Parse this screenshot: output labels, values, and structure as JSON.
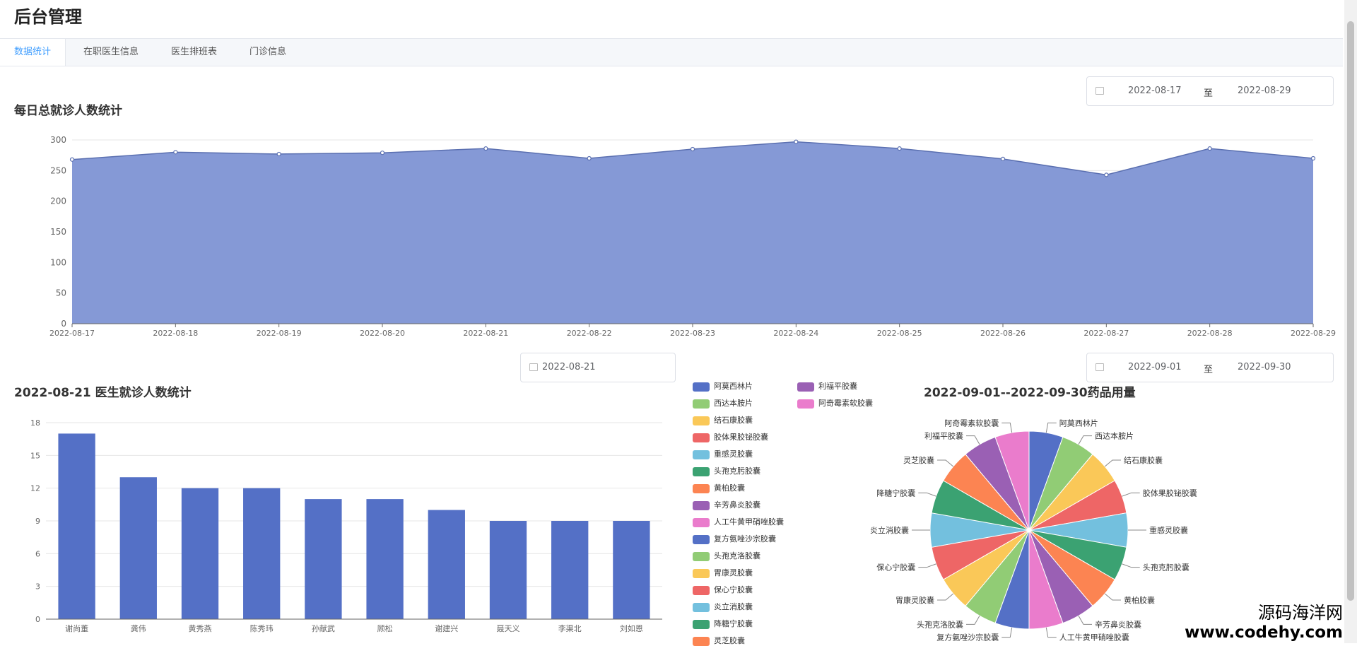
{
  "app": {
    "title": "后台管理"
  },
  "tabs": [
    {
      "label": "数据统计",
      "active": true
    },
    {
      "label": "在职医生信息",
      "active": false
    },
    {
      "label": "医生排班表",
      "active": false
    },
    {
      "label": "门诊信息",
      "active": false
    }
  ],
  "daily_section": {
    "title": "每日总就诊人数统计",
    "range": {
      "start": "2022-08-17",
      "separator": "至",
      "end": "2022-08-29"
    }
  },
  "doctor_section": {
    "title": "2022-08-21 医生就诊人数统计",
    "date": "2022-08-21"
  },
  "drug_section": {
    "title": "2022-09-01--2022-09-30药品用量",
    "range": {
      "start": "2022-09-01",
      "separator": "至",
      "end": "2022-09-30"
    }
  },
  "watermark": {
    "line1": "源码海洋网",
    "line2": "www.codehy.com"
  },
  "colors": {
    "primary": "#5470c6",
    "area_fill": "#8599d6",
    "tab_active": "#409eff"
  },
  "chart_data": [
    {
      "type": "area",
      "x": [
        "2022-08-17",
        "2022-08-18",
        "2022-08-19",
        "2022-08-20",
        "2022-08-21",
        "2022-08-22",
        "2022-08-23",
        "2022-08-24",
        "2022-08-25",
        "2022-08-26",
        "2022-08-27",
        "2022-08-28",
        "2022-08-29"
      ],
      "values": [
        268,
        280,
        277,
        279,
        286,
        270,
        285,
        297,
        286,
        269,
        243,
        286,
        270
      ],
      "ylim": [
        0,
        300
      ],
      "yticks": [
        0,
        50,
        100,
        150,
        200,
        250,
        300
      ],
      "grid": true
    },
    {
      "type": "bar",
      "categories": [
        "谢尚董",
        "龚伟",
        "黄秀燕",
        "陈秀玮",
        "孙献武",
        "顾松",
        "谢建兴",
        "聂天义",
        "李渠北",
        "刘如恩"
      ],
      "values": [
        17,
        13,
        12,
        12,
        11,
        11,
        10,
        9,
        9,
        9
      ],
      "ylim": [
        0,
        18
      ],
      "yticks": [
        0,
        3,
        6,
        9,
        12,
        15,
        18
      ],
      "grid": true
    },
    {
      "type": "pie",
      "legend_placement": "left",
      "slices": [
        {
          "label": "阿莫西林片",
          "value": 1,
          "color": "#5470c6"
        },
        {
          "label": "西达本胺片",
          "value": 1,
          "color": "#91cc75"
        },
        {
          "label": "结石康胶囊",
          "value": 1,
          "color": "#fac858"
        },
        {
          "label": "胶体果胶铋胶囊",
          "value": 1,
          "color": "#ee6666"
        },
        {
          "label": "重感灵胶囊",
          "value": 1,
          "color": "#73c0de"
        },
        {
          "label": "头孢克肟胶囊",
          "value": 1,
          "color": "#3ba272"
        },
        {
          "label": "黄柏胶囊",
          "value": 1,
          "color": "#fc8452"
        },
        {
          "label": "辛芳鼻炎胶囊",
          "value": 1,
          "color": "#9a60b4"
        },
        {
          "label": "人工牛黄甲硝唑胶囊",
          "value": 1,
          "color": "#ea7ccc"
        },
        {
          "label": "复方氨唑沙宗胶囊",
          "value": 1,
          "color": "#5470c6"
        },
        {
          "label": "头孢克洛胶囊",
          "value": 1,
          "color": "#91cc75"
        },
        {
          "label": "胃康灵胶囊",
          "value": 1,
          "color": "#fac858"
        },
        {
          "label": "保心宁胶囊",
          "value": 1,
          "color": "#ee6666"
        },
        {
          "label": "炎立消胶囊",
          "value": 1,
          "color": "#73c0de"
        },
        {
          "label": "降糖宁胶囊",
          "value": 1,
          "color": "#3ba272"
        },
        {
          "label": "灵芝胶囊",
          "value": 1,
          "color": "#fc8452"
        },
        {
          "label": "利福平胶囊",
          "value": 1,
          "color": "#9a60b4"
        },
        {
          "label": "阿奇霉素软胶囊",
          "value": 1,
          "color": "#ea7ccc"
        }
      ]
    }
  ]
}
